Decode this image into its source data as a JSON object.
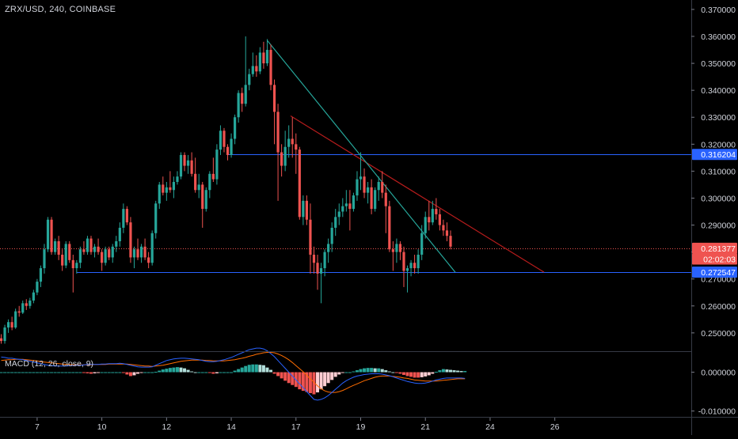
{
  "header": {
    "symbol_label": "ZRX/USD, 240, COINBASE"
  },
  "macd": {
    "label": "MACD (12, 26, close, 9)",
    "ticks": [
      {
        "value": 0.0,
        "label": "0.000000"
      },
      {
        "value": -0.01,
        "label": "-0.010000"
      }
    ],
    "range": [
      -0.0115,
      0.0052
    ],
    "colors": {
      "macd_line": "#2962ff",
      "signal_line": "#ff6d00",
      "hist_pos_strong": "#26a69a",
      "hist_pos_weak": "#b2dfdb",
      "hist_neg_strong": "#ef5350",
      "hist_neg_weak": "#ffcdd2"
    }
  },
  "colors": {
    "up": "#26a69a",
    "down": "#ef5350",
    "background": "#000000",
    "axis_text": "#d1d4dc",
    "hline": "#2962ff",
    "descending_red": "#b71c1c",
    "descending_green": "#26a69a",
    "last_price_line": "#ef5350"
  },
  "chart_data": {
    "type": "candlestick",
    "x_ticks": [
      {
        "index": 10,
        "label": "7"
      },
      {
        "index": 28,
        "label": "10"
      },
      {
        "index": 46,
        "label": "12"
      },
      {
        "index": 64,
        "label": "14"
      },
      {
        "index": 82,
        "label": "17"
      },
      {
        "index": 100,
        "label": "19"
      },
      {
        "index": 118,
        "label": "21"
      },
      {
        "index": 136,
        "label": "24"
      },
      {
        "index": 154,
        "label": "26"
      }
    ],
    "y_ticks": [
      "0.370000",
      "0.360000",
      "0.350000",
      "0.340000",
      "0.330000",
      "0.320000",
      "0.310000",
      "0.300000",
      "0.290000",
      "0.280000",
      "0.270000",
      "0.260000",
      "0.250000"
    ],
    "ylim": [
      0.2435,
      0.3735
    ],
    "price_labels": [
      {
        "name": "resistance",
        "value": 0.316204,
        "label": "0.316204",
        "color": "#2962ff"
      },
      {
        "name": "last-price",
        "value": 0.281377,
        "label": "0.281377",
        "color": "#ef5350"
      },
      {
        "name": "countdown",
        "value": 0.277377,
        "label": "02:02:03",
        "color": "#ef5350"
      },
      {
        "name": "support",
        "value": 0.272547,
        "label": "0.272547",
        "color": "#2962ff"
      }
    ],
    "horizontal_lines": [
      {
        "name": "resistance-line",
        "value": 0.316204,
        "from_index": 63
      },
      {
        "name": "support-line",
        "value": 0.272547,
        "from_index": 21
      }
    ],
    "trendlines": [
      {
        "name": "red-trendline",
        "color": "#b71c1c",
        "x1": 80.5,
        "y1": 0.3305,
        "x2": 151,
        "y2": 0.2725
      },
      {
        "name": "green-trendline",
        "color": "#26a69a",
        "x1": 74,
        "y1": 0.3585,
        "x2": 126.3,
        "y2": 0.2725
      }
    ],
    "candles": [
      [
        0.248,
        0.2495,
        0.246,
        0.247
      ],
      [
        0.247,
        0.253,
        0.246,
        0.252
      ],
      [
        0.252,
        0.255,
        0.25,
        0.254
      ],
      [
        0.254,
        0.256,
        0.251,
        0.252
      ],
      [
        0.252,
        0.259,
        0.2515,
        0.258
      ],
      [
        0.258,
        0.26,
        0.256,
        0.2575
      ],
      [
        0.2575,
        0.262,
        0.257,
        0.261
      ],
      [
        0.261,
        0.2625,
        0.2585,
        0.26
      ],
      [
        0.26,
        0.263,
        0.259,
        0.262
      ],
      [
        0.262,
        0.266,
        0.261,
        0.265
      ],
      [
        0.265,
        0.27,
        0.264,
        0.269
      ],
      [
        0.269,
        0.275,
        0.267,
        0.274
      ],
      [
        0.274,
        0.283,
        0.272,
        0.281
      ],
      [
        0.281,
        0.293,
        0.28,
        0.292
      ],
      [
        0.292,
        0.293,
        0.279,
        0.28
      ],
      [
        0.28,
        0.285,
        0.279,
        0.284
      ],
      [
        0.284,
        0.286,
        0.277,
        0.279
      ],
      [
        0.279,
        0.281,
        0.273,
        0.275
      ],
      [
        0.275,
        0.284,
        0.274,
        0.283
      ],
      [
        0.283,
        0.284,
        0.276,
        0.277
      ],
      [
        0.277,
        0.279,
        0.265,
        0.274
      ],
      [
        0.274,
        0.277,
        0.272,
        0.276
      ],
      [
        0.276,
        0.282,
        0.274,
        0.281
      ],
      [
        0.281,
        0.284,
        0.279,
        0.28
      ],
      [
        0.28,
        0.286,
        0.279,
        0.285
      ],
      [
        0.285,
        0.286,
        0.279,
        0.28
      ],
      [
        0.28,
        0.283,
        0.278,
        0.282
      ],
      [
        0.282,
        0.285,
        0.279,
        0.28
      ],
      [
        0.28,
        0.281,
        0.273,
        0.276
      ],
      [
        0.276,
        0.282,
        0.275,
        0.281
      ],
      [
        0.281,
        0.282,
        0.277,
        0.278
      ],
      [
        0.278,
        0.283,
        0.276,
        0.282
      ],
      [
        0.282,
        0.286,
        0.28,
        0.284
      ],
      [
        0.284,
        0.291,
        0.282,
        0.289
      ],
      [
        0.289,
        0.298,
        0.287,
        0.296
      ],
      [
        0.296,
        0.297,
        0.29,
        0.291
      ],
      [
        0.291,
        0.293,
        0.276,
        0.278
      ],
      [
        0.278,
        0.282,
        0.274,
        0.281
      ],
      [
        0.281,
        0.285,
        0.277,
        0.278
      ],
      [
        0.278,
        0.283,
        0.276,
        0.282
      ],
      [
        0.282,
        0.285,
        0.277,
        0.278
      ],
      [
        0.278,
        0.28,
        0.274,
        0.276
      ],
      [
        0.276,
        0.288,
        0.275,
        0.287
      ],
      [
        0.287,
        0.299,
        0.285,
        0.298
      ],
      [
        0.298,
        0.306,
        0.296,
        0.305
      ],
      [
        0.305,
        0.308,
        0.301,
        0.302
      ],
      [
        0.302,
        0.306,
        0.299,
        0.304
      ],
      [
        0.304,
        0.31,
        0.302,
        0.303
      ],
      [
        0.303,
        0.308,
        0.3,
        0.306
      ],
      [
        0.306,
        0.31,
        0.305,
        0.308
      ],
      [
        0.308,
        0.317,
        0.307,
        0.316
      ],
      [
        0.316,
        0.317,
        0.31,
        0.312
      ],
      [
        0.312,
        0.316,
        0.309,
        0.314
      ],
      [
        0.314,
        0.317,
        0.308,
        0.309
      ],
      [
        0.309,
        0.315,
        0.302,
        0.303
      ],
      [
        0.303,
        0.309,
        0.3,
        0.305
      ],
      [
        0.305,
        0.306,
        0.289,
        0.296
      ],
      [
        0.296,
        0.304,
        0.295,
        0.303
      ],
      [
        0.303,
        0.31,
        0.3,
        0.309
      ],
      [
        0.309,
        0.315,
        0.306,
        0.307
      ],
      [
        0.307,
        0.32,
        0.305,
        0.318
      ],
      [
        0.318,
        0.327,
        0.316,
        0.325
      ],
      [
        0.325,
        0.326,
        0.317,
        0.319
      ],
      [
        0.319,
        0.32,
        0.314,
        0.316
      ],
      [
        0.316,
        0.324,
        0.315,
        0.322
      ],
      [
        0.322,
        0.331,
        0.32,
        0.33
      ],
      [
        0.33,
        0.34,
        0.328,
        0.339
      ],
      [
        0.339,
        0.341,
        0.332,
        0.335
      ],
      [
        0.335,
        0.36,
        0.334,
        0.342
      ],
      [
        0.342,
        0.348,
        0.34,
        0.346
      ],
      [
        0.346,
        0.354,
        0.345,
        0.349
      ],
      [
        0.349,
        0.353,
        0.345,
        0.347
      ],
      [
        0.347,
        0.356,
        0.346,
        0.354
      ],
      [
        0.354,
        0.358,
        0.348,
        0.35
      ],
      [
        0.35,
        0.359,
        0.349,
        0.355
      ],
      [
        0.355,
        0.357,
        0.34,
        0.342
      ],
      [
        0.342,
        0.344,
        0.32,
        0.332
      ],
      [
        0.332,
        0.335,
        0.299,
        0.317
      ],
      [
        0.317,
        0.32,
        0.308,
        0.312
      ],
      [
        0.312,
        0.325,
        0.31,
        0.319
      ],
      [
        0.319,
        0.327,
        0.315,
        0.322
      ],
      [
        0.322,
        0.33,
        0.315,
        0.32
      ],
      [
        0.32,
        0.324,
        0.309,
        0.318
      ],
      [
        0.318,
        0.319,
        0.292,
        0.293
      ],
      [
        0.293,
        0.301,
        0.29,
        0.299
      ],
      [
        0.299,
        0.301,
        0.29,
        0.292
      ],
      [
        0.292,
        0.298,
        0.272,
        0.279
      ],
      [
        0.279,
        0.282,
        0.272,
        0.276
      ],
      [
        0.276,
        0.279,
        0.266,
        0.272
      ],
      [
        0.272,
        0.276,
        0.261,
        0.274
      ],
      [
        0.274,
        0.281,
        0.271,
        0.28
      ],
      [
        0.28,
        0.285,
        0.276,
        0.283
      ],
      [
        0.283,
        0.291,
        0.28,
        0.289
      ],
      [
        0.289,
        0.296,
        0.286,
        0.293
      ],
      [
        0.293,
        0.298,
        0.29,
        0.295
      ],
      [
        0.295,
        0.3,
        0.293,
        0.297
      ],
      [
        0.297,
        0.303,
        0.295,
        0.298
      ],
      [
        0.298,
        0.303,
        0.288,
        0.296
      ],
      [
        0.296,
        0.302,
        0.295,
        0.301
      ],
      [
        0.301,
        0.31,
        0.299,
        0.307
      ],
      [
        0.307,
        0.317,
        0.303,
        0.308
      ],
      [
        0.308,
        0.311,
        0.3,
        0.302
      ],
      [
        0.302,
        0.306,
        0.298,
        0.304
      ],
      [
        0.304,
        0.307,
        0.294,
        0.296
      ],
      [
        0.296,
        0.304,
        0.295,
        0.303
      ],
      [
        0.303,
        0.308,
        0.299,
        0.306
      ],
      [
        0.306,
        0.31,
        0.3,
        0.302
      ],
      [
        0.302,
        0.305,
        0.287,
        0.297
      ],
      [
        0.297,
        0.299,
        0.28,
        0.281
      ],
      [
        0.281,
        0.284,
        0.273,
        0.28
      ],
      [
        0.28,
        0.285,
        0.276,
        0.283
      ],
      [
        0.283,
        0.284,
        0.277,
        0.28
      ],
      [
        0.28,
        0.282,
        0.267,
        0.273
      ],
      [
        0.273,
        0.275,
        0.265,
        0.274
      ],
      [
        0.274,
        0.277,
        0.271,
        0.276
      ],
      [
        0.276,
        0.279,
        0.272,
        0.274
      ],
      [
        0.274,
        0.281,
        0.272,
        0.279
      ],
      [
        0.279,
        0.29,
        0.277,
        0.287
      ],
      [
        0.287,
        0.295,
        0.285,
        0.293
      ],
      [
        0.293,
        0.299,
        0.288,
        0.291
      ],
      [
        0.291,
        0.299,
        0.29,
        0.296
      ],
      [
        0.296,
        0.3,
        0.292,
        0.294
      ],
      [
        0.294,
        0.296,
        0.288,
        0.29
      ],
      [
        0.29,
        0.292,
        0.286,
        0.288
      ],
      [
        0.288,
        0.291,
        0.284,
        0.286
      ],
      [
        0.286,
        0.288,
        0.281,
        0.282
      ]
    ],
    "macd_hist": [
      0.0,
      0.0,
      0.0,
      0.0,
      0.0,
      0.0,
      0.0,
      0.0,
      0.0,
      0.0,
      0.0,
      0.0,
      0.0,
      0.0,
      0.0,
      0.0,
      0.0,
      0.0,
      0.0,
      0.0,
      0.0,
      0.0,
      0.0,
      -0.0001,
      -0.0003,
      -0.0004,
      -0.0003,
      -0.0001,
      0.0,
      0.0,
      0.0,
      0.0,
      0.0,
      0.0,
      -0.0002,
      -0.0006,
      -0.001,
      -0.0008,
      -0.0004,
      -0.0001,
      0.0,
      0.0,
      0.0,
      0.0001,
      0.0004,
      0.0007,
      0.0009,
      0.0011,
      0.0012,
      0.0013,
      0.0012,
      0.001,
      0.0006,
      0.0002,
      0.0,
      0.0,
      0.0,
      0.0,
      -0.0002,
      -0.0004,
      -0.0003,
      0.0,
      0.0,
      0.0,
      0.0,
      0.0004,
      0.0008,
      0.0012,
      0.0016,
      0.0019,
      0.002,
      0.002,
      0.0019,
      0.0018,
      0.0012,
      0.0006,
      -0.0004,
      -0.001,
      -0.0016,
      -0.0022,
      -0.0028,
      -0.0033,
      -0.0038,
      -0.0044,
      -0.0048,
      -0.0051,
      -0.0054,
      -0.0057,
      -0.0052,
      -0.0044,
      -0.0036,
      -0.0028,
      -0.002,
      -0.0012,
      -0.0006,
      -0.0002,
      0.0,
      0.0,
      0.0002,
      0.0005,
      0.0008,
      0.001,
      0.0011,
      0.0011,
      0.001,
      0.001,
      0.0008,
      0.0005,
      0.0002,
      0.0,
      -0.0002,
      -0.0004,
      -0.0007,
      -0.001,
      -0.0012,
      -0.0014,
      -0.0014,
      -0.0013,
      -0.0011,
      -0.0008,
      -0.0004,
      0.0001,
      0.0005,
      0.0008,
      0.0007,
      0.0006,
      0.0005,
      0.0004,
      0.0003,
      0.0003
    ],
    "macd_line": [
      0.0039,
      0.0038,
      0.0036,
      0.0036,
      0.0034,
      0.0033,
      0.0032,
      0.003,
      0.0028,
      0.0026,
      0.0024,
      0.0022,
      0.002,
      0.0018,
      0.0017,
      0.0016,
      0.0016,
      0.0016,
      0.0016,
      0.0017,
      0.0017,
      0.0018,
      0.0018,
      0.0019,
      0.002,
      0.002,
      0.002,
      0.002,
      0.0021,
      0.0021,
      0.0022,
      0.0022,
      0.0022,
      0.0023,
      0.0022,
      0.002,
      0.0018,
      0.0016,
      0.0014,
      0.0013,
      0.0013,
      0.0013,
      0.0014,
      0.0018,
      0.0022,
      0.0026,
      0.003,
      0.0032,
      0.0034,
      0.0035,
      0.0036,
      0.0036,
      0.0035,
      0.0034,
      0.0033,
      0.0032,
      0.003,
      0.0028,
      0.0027,
      0.0027,
      0.0028,
      0.003,
      0.0032,
      0.0035,
      0.0038,
      0.0042,
      0.0046,
      0.005,
      0.0054,
      0.0058,
      0.006,
      0.0062,
      0.0062,
      0.006,
      0.0055,
      0.0048,
      0.004,
      0.003,
      0.002,
      0.001,
      0.0,
      -0.001,
      -0.002,
      -0.003,
      -0.004,
      -0.005,
      -0.006,
      -0.007,
      -0.0072,
      -0.007,
      -0.0066,
      -0.006,
      -0.0052,
      -0.0044,
      -0.0036,
      -0.0028,
      -0.0022,
      -0.0017,
      -0.0013,
      -0.001,
      -0.0008,
      -0.0006,
      -0.0005,
      -0.0004,
      -0.0004,
      -0.0004,
      -0.0005,
      -0.0007,
      -0.0009,
      -0.0012,
      -0.0015,
      -0.0018,
      -0.0021,
      -0.0024,
      -0.0026,
      -0.0028,
      -0.0029,
      -0.0029,
      -0.0028,
      -0.0026,
      -0.0023,
      -0.002,
      -0.0018,
      -0.0016,
      -0.0015,
      -0.0015,
      -0.0015,
      -0.0015,
      -0.0015,
      -0.0016
    ],
    "signal_line": [
      0.003,
      0.0031,
      0.0032,
      0.0032,
      0.0033,
      0.0033,
      0.0033,
      0.0032,
      0.0031,
      0.003,
      0.0029,
      0.0027,
      0.0026,
      0.0025,
      0.0024,
      0.0023,
      0.0022,
      0.0021,
      0.002,
      0.002,
      0.0019,
      0.0019,
      0.0019,
      0.0019,
      0.0019,
      0.0019,
      0.002,
      0.002,
      0.002,
      0.002,
      0.0021,
      0.0021,
      0.0021,
      0.0021,
      0.0021,
      0.0021,
      0.002,
      0.0019,
      0.0018,
      0.0017,
      0.0016,
      0.0016,
      0.0015,
      0.0016,
      0.0017,
      0.0018,
      0.002,
      0.0022,
      0.0024,
      0.0026,
      0.0028,
      0.0029,
      0.003,
      0.0031,
      0.0031,
      0.0031,
      0.0031,
      0.003,
      0.003,
      0.0029,
      0.0029,
      0.0029,
      0.0029,
      0.003,
      0.0031,
      0.0032,
      0.0034,
      0.0036,
      0.0038,
      0.0041,
      0.0043,
      0.0046,
      0.0048,
      0.005,
      0.0051,
      0.0051,
      0.005,
      0.0047,
      0.0043,
      0.0038,
      0.0032,
      0.0025,
      0.0017,
      0.0009,
      0.0001,
      -0.0008,
      -0.0017,
      -0.0026,
      -0.0035,
      -0.0043,
      -0.0048,
      -0.0051,
      -0.0052,
      -0.0052,
      -0.005,
      -0.0047,
      -0.0043,
      -0.0038,
      -0.0034,
      -0.003,
      -0.0026,
      -0.0022,
      -0.0019,
      -0.0016,
      -0.0013,
      -0.0011,
      -0.001,
      -0.001,
      -0.001,
      -0.0011,
      -0.0012,
      -0.0013,
      -0.0015,
      -0.0016,
      -0.0018,
      -0.002,
      -0.0021,
      -0.0022,
      -0.0023,
      -0.0023,
      -0.0023,
      -0.0023,
      -0.0022,
      -0.0021,
      -0.002,
      -0.0019,
      -0.0018,
      -0.0017,
      -0.0017,
      -0.0017
    ]
  }
}
